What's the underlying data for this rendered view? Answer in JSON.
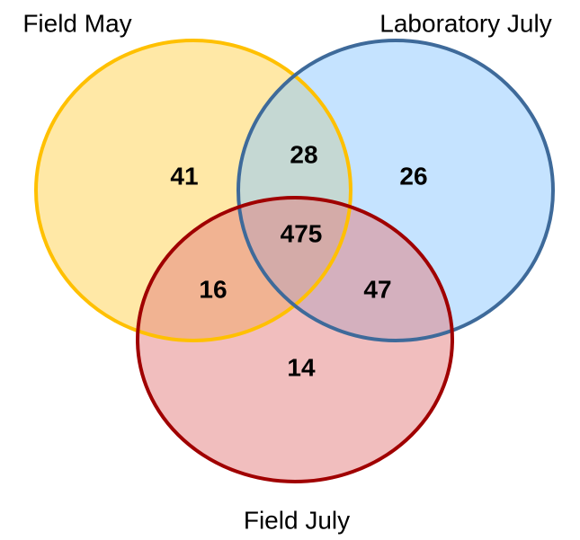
{
  "chart_data": {
    "type": "venn",
    "sets": [
      {
        "name": "Field May",
        "color": "#ffd24d",
        "stroke": "#ffc000"
      },
      {
        "name": "Laboratory July",
        "color": "#8cc8ff",
        "stroke": "#3e6a9a"
      },
      {
        "name": "Field July",
        "color": "#e47e7e",
        "stroke": "#a00000"
      }
    ],
    "regions": [
      {
        "sets": [
          0
        ],
        "value": 41
      },
      {
        "sets": [
          0,
          1
        ],
        "value": 28
      },
      {
        "sets": [
          1
        ],
        "value": 26
      },
      {
        "sets": [
          0,
          1,
          2
        ],
        "value": 475
      },
      {
        "sets": [
          0,
          2
        ],
        "value": 16
      },
      {
        "sets": [
          1,
          2
        ],
        "value": 47
      },
      {
        "sets": [
          2
        ],
        "value": 14
      }
    ]
  }
}
